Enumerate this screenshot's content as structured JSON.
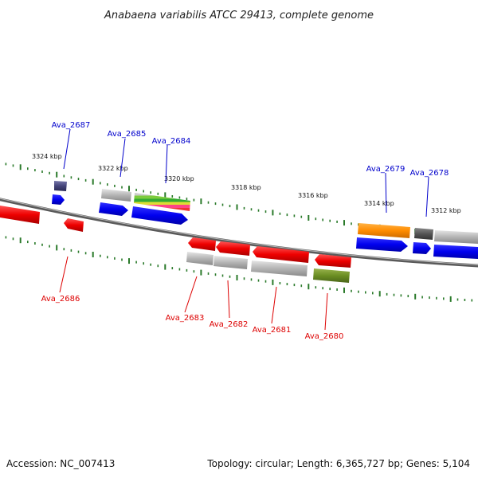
{
  "title": "Anabaena variabilis ATCC 29413, complete genome",
  "accession": "Accession: NC_007413",
  "summary": "Topology: circular; Length: 6,365,727 bp; Genes: 5,104",
  "kbp_labels": [
    "3324 kbp",
    "3322 kbp",
    "3320 kbp",
    "3318 kbp",
    "3316 kbp",
    "3314 kbp",
    "3312 kbp"
  ],
  "genes": [
    {
      "name": "Ava_2687",
      "strand": "top",
      "color": "#0000cc"
    },
    {
      "name": "Ava_2685",
      "strand": "top",
      "color": "#0000cc"
    },
    {
      "name": "Ava_2684",
      "strand": "top",
      "color": "#0000cc"
    },
    {
      "name": "Ava_2679",
      "strand": "top",
      "color": "#0000cc"
    },
    {
      "name": "Ava_2678",
      "strand": "top",
      "color": "#0000cc"
    },
    {
      "name": "Ava_2686",
      "strand": "bottom",
      "color": "#dd0000"
    },
    {
      "name": "Ava_2683",
      "strand": "bottom",
      "color": "#dd0000"
    },
    {
      "name": "Ava_2682",
      "strand": "bottom",
      "color": "#dd0000"
    },
    {
      "name": "Ava_2681",
      "strand": "bottom",
      "color": "#dd0000"
    },
    {
      "name": "Ava_2680",
      "strand": "bottom",
      "color": "#dd0000"
    }
  ]
}
